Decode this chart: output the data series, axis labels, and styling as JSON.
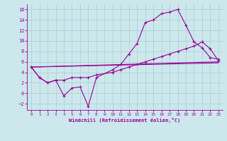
{
  "xlabel": "Windchill (Refroidissement éolien,°C)",
  "bg_color": "#cce8ec",
  "grid_color": "#aaccd4",
  "line_color": "#990099",
  "xlim": [
    -0.5,
    23.5
  ],
  "ylim": [
    -3.2,
    17
  ],
  "xticks": [
    0,
    1,
    2,
    3,
    4,
    5,
    6,
    7,
    8,
    9,
    10,
    11,
    12,
    13,
    14,
    15,
    16,
    17,
    18,
    19,
    20,
    21,
    22,
    23
  ],
  "yticks": [
    -2,
    0,
    2,
    4,
    6,
    8,
    10,
    12,
    14,
    16
  ],
  "curve1_x": [
    0,
    1,
    2,
    3,
    4,
    5,
    6,
    7,
    8,
    10,
    11,
    12,
    13,
    14,
    15,
    16,
    17,
    18,
    19,
    20,
    21,
    22,
    23
  ],
  "curve1_y": [
    5.0,
    3.0,
    2.0,
    2.5,
    -0.5,
    1.0,
    1.2,
    -2.5,
    3.0,
    4.5,
    5.5,
    7.5,
    9.5,
    13.5,
    14.0,
    15.2,
    15.5,
    16.0,
    13.0,
    9.8,
    8.7,
    6.8,
    6.5
  ],
  "curve2_x": [
    0,
    1,
    2,
    3,
    4,
    5,
    6,
    7,
    8,
    10,
    11,
    12,
    13,
    14,
    15,
    16,
    17,
    18,
    19,
    20,
    21,
    22,
    23
  ],
  "curve2_y": [
    5.0,
    3.0,
    2.0,
    2.5,
    2.5,
    3.0,
    3.0,
    3.0,
    3.5,
    4.0,
    4.5,
    5.0,
    5.5,
    6.0,
    6.5,
    7.0,
    7.5,
    8.0,
    8.5,
    9.0,
    9.8,
    8.5,
    6.2
  ],
  "line1_x": [
    0,
    23
  ],
  "line1_y": [
    5.0,
    6.0
  ],
  "line2_x": [
    0,
    23
  ],
  "line2_y": [
    5.0,
    5.8
  ]
}
